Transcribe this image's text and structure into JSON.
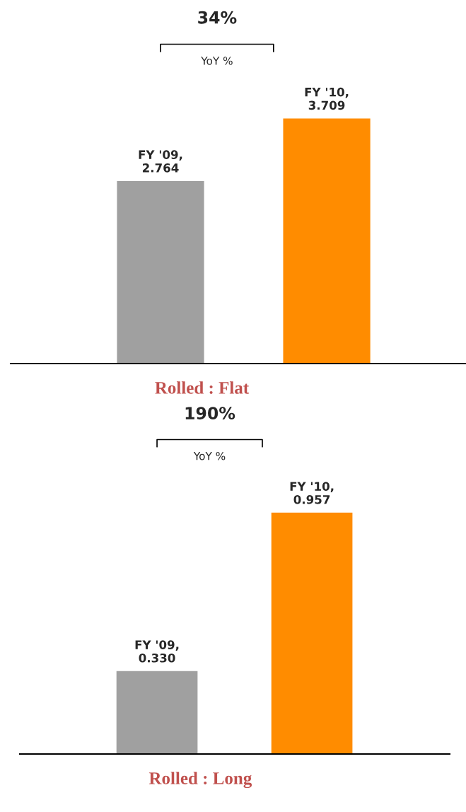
{
  "chart_data": [
    {
      "type": "bar",
      "title": "Rolled : Flat",
      "categories": [
        null,
        null
      ],
      "values": [
        2.764,
        3.709
      ],
      "colors": [
        "#a0a0a0",
        "#ff8c00"
      ],
      "value_labels": [
        "FY '09,\n2.764",
        "FY '10,\n3.709"
      ],
      "annotations": [
        "34%",
        "YoY %"
      ]
    },
    {
      "type": "bar",
      "title": "Rolled : Long",
      "categories": [
        null,
        null
      ],
      "values": [
        0.33,
        0.957
      ],
      "colors": [
        "#a0a0a0",
        "#ff8c00"
      ],
      "value_labels": [
        "FY '09,\n0.330",
        "FY '10,\n0.957"
      ],
      "annotations": [
        "190%",
        "YoY %"
      ]
    }
  ]
}
